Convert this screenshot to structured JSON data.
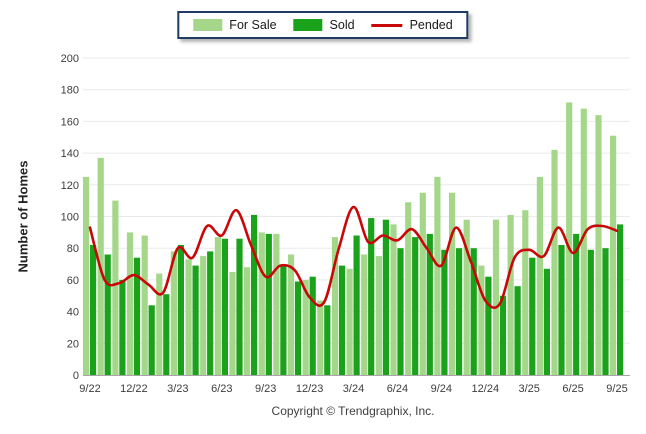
{
  "y_axis": {
    "title": "Number of Homes"
  },
  "footer": {
    "copyright": "Copyright © Trendgraphix, Inc."
  },
  "chart_data": {
    "type": "bar+line combo",
    "title": "",
    "xlabel": "",
    "ylabel": "Number of Homes",
    "ylim": [
      0,
      200
    ],
    "ytick_step": 20,
    "grid": "horizontal",
    "legend_position": "top-center",
    "categories": [
      "9/22",
      "10/22",
      "11/22",
      "12/22",
      "1/23",
      "2/23",
      "3/23",
      "4/23",
      "5/23",
      "6/23",
      "7/23",
      "8/23",
      "9/23",
      "10/23",
      "11/23",
      "12/23",
      "1/24",
      "2/24",
      "3/24",
      "4/24",
      "5/24",
      "6/24",
      "7/24",
      "8/24",
      "9/24",
      "10/24",
      "11/24",
      "12/24",
      "1/25",
      "2/25",
      "3/25",
      "4/25",
      "5/25",
      "6/25",
      "7/25",
      "8/25",
      "9/25"
    ],
    "x_ticks": [
      {
        "index": 0,
        "label": "9/22"
      },
      {
        "index": 3,
        "label": "12/22"
      },
      {
        "index": 6,
        "label": "3/23"
      },
      {
        "index": 9,
        "label": "6/23"
      },
      {
        "index": 12,
        "label": "9/23"
      },
      {
        "index": 15,
        "label": "12/23"
      },
      {
        "index": 18,
        "label": "3/24"
      },
      {
        "index": 21,
        "label": "6/24"
      },
      {
        "index": 24,
        "label": "9/24"
      },
      {
        "index": 27,
        "label": "12/24"
      },
      {
        "index": 30,
        "label": "3/25"
      },
      {
        "index": 33,
        "label": "6/25"
      },
      {
        "index": 36,
        "label": "9/25"
      }
    ],
    "series": [
      {
        "name": "For Sale",
        "type": "bar",
        "color": "#a5d78a",
        "values": [
          125,
          137,
          110,
          90,
          88,
          64,
          78,
          73,
          75,
          87,
          65,
          68,
          90,
          89,
          76,
          60,
          47,
          87,
          67,
          76,
          75,
          95,
          109,
          115,
          125,
          115,
          98,
          69,
          98,
          101,
          104,
          125,
          142,
          172,
          168,
          164,
          151
        ]
      },
      {
        "name": "Sold",
        "type": "bar",
        "color": "#1aa21a",
        "values": [
          82,
          76,
          60,
          74,
          44,
          51,
          82,
          69,
          78,
          86,
          86,
          101,
          89,
          69,
          59,
          62,
          44,
          69,
          88,
          99,
          98,
          80,
          87,
          89,
          79,
          80,
          80,
          62,
          50,
          56,
          74,
          67,
          82,
          89,
          79,
          80,
          95
        ]
      },
      {
        "name": "Pended",
        "type": "line",
        "color": "#c80808",
        "values": [
          93,
          60,
          58,
          63,
          57,
          52,
          80,
          74,
          94,
          88,
          104,
          82,
          62,
          69,
          66,
          49,
          46,
          80,
          106,
          84,
          88,
          85,
          92,
          80,
          69,
          93,
          72,
          47,
          45,
          74,
          79,
          75,
          93,
          77,
          92,
          94,
          91
        ]
      }
    ]
  }
}
